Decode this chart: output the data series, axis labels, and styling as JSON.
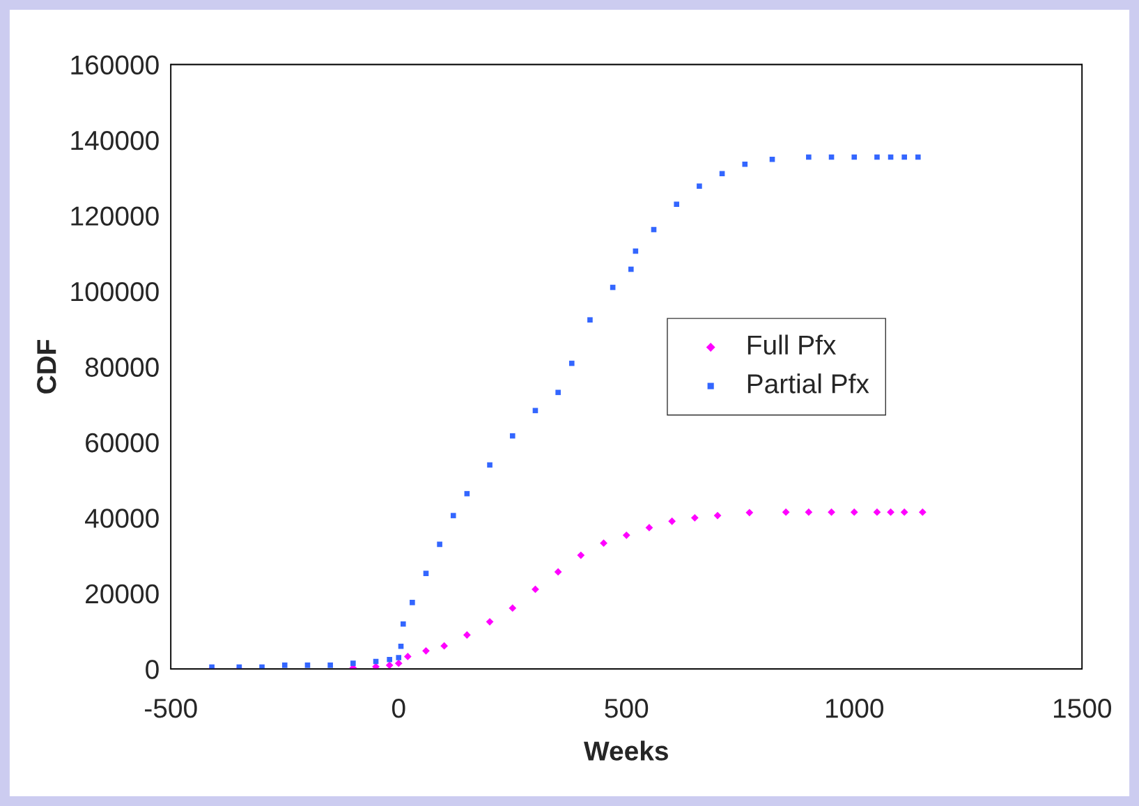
{
  "chart_data": {
    "type": "scatter",
    "xlabel": "Weeks",
    "ylabel": "CDF",
    "xlim": [
      -500,
      1500
    ],
    "xticks": [
      -500,
      0,
      500,
      1000,
      1500
    ],
    "ylim": [
      0,
      160000
    ],
    "yticks": [
      0,
      20000,
      40000,
      60000,
      80000,
      100000,
      120000,
      140000,
      160000
    ],
    "grid": false,
    "legend": "right",
    "series": [
      {
        "name": "Full Pfx",
        "color": "#ff00ff",
        "marker": "diamond",
        "x": [
          -410,
          -350,
          -300,
          -250,
          -200,
          -150,
          -100,
          -50,
          -20,
          0,
          20,
          60,
          100,
          150,
          200,
          250,
          300,
          350,
          400,
          450,
          500,
          550,
          600,
          650,
          700,
          770,
          850,
          900,
          950,
          1000,
          1050,
          1080,
          1110,
          1150
        ],
        "values": [
          0,
          0,
          null,
          null,
          null,
          null,
          300,
          600,
          1000,
          1500,
          3300,
          4800,
          6100,
          9000,
          12500,
          16100,
          21100,
          25700,
          30100,
          33300,
          35400,
          37400,
          39100,
          40000,
          40600,
          41400,
          41500,
          41500,
          41500,
          41500,
          41500,
          41500,
          41500,
          41500
        ]
      },
      {
        "name": "Partial Pfx",
        "color": "#3366ff",
        "marker": "square",
        "x": [
          -410,
          -350,
          -300,
          -250,
          -200,
          -150,
          -100,
          -50,
          -20,
          0,
          5,
          10,
          30,
          60,
          90,
          120,
          150,
          200,
          250,
          300,
          350,
          380,
          420,
          470,
          510,
          520,
          560,
          610,
          660,
          710,
          760,
          820,
          900,
          950,
          1000,
          1050,
          1080,
          1110,
          1140
        ],
        "values": [
          500,
          500,
          500,
          1000,
          1000,
          1000,
          1500,
          2000,
          2500,
          3000,
          6000,
          11900,
          17600,
          25300,
          33000,
          40600,
          46400,
          54000,
          61700,
          68400,
          73200,
          80900,
          92400,
          101000,
          105800,
          110600,
          116300,
          123000,
          127800,
          131100,
          133600,
          134900,
          135500,
          135500,
          135500,
          135500,
          135500,
          135500,
          135500
        ]
      }
    ]
  }
}
